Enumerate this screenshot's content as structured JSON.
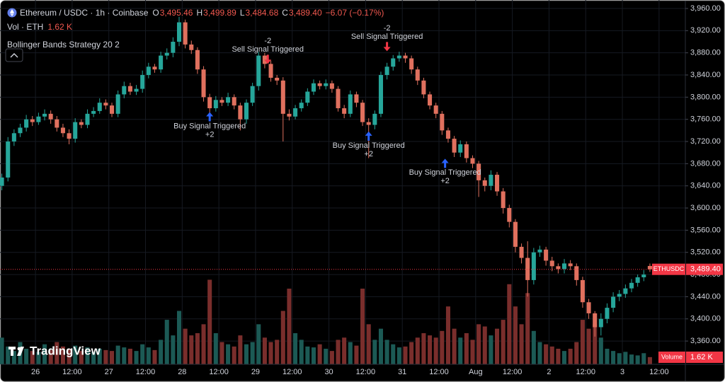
{
  "chart_data": {
    "type": "candlestick",
    "title": "Ethereum / USDC · 1h · Coinbase",
    "ohlc_header": [
      {
        "label": "O",
        "value": "3,495.46"
      },
      {
        "label": "H",
        "value": "3,499.89"
      },
      {
        "label": "L",
        "value": "3,484.68"
      },
      {
        "label": "C",
        "value": "3,489.40"
      }
    ],
    "change": "−6.07 (−0.17%)",
    "volume_legend": {
      "label": "Vol · ETH",
      "value": "1.62 K"
    },
    "indicator": "Bollinger Bands Strategy 20 2",
    "brand": "TradingView",
    "xlim": [
      -11.6,
      212.6
    ],
    "xticks": [
      {
        "value": 0,
        "label": "26"
      },
      {
        "value": 12,
        "label": "12:00"
      },
      {
        "value": 24,
        "label": "27"
      },
      {
        "value": 36,
        "label": "12:00"
      },
      {
        "value": 48,
        "label": "28"
      },
      {
        "value": 60,
        "label": "12:00"
      },
      {
        "value": 72,
        "label": "29"
      },
      {
        "value": 84,
        "label": "12:00"
      },
      {
        "value": 96,
        "label": "30"
      },
      {
        "value": 108,
        "label": "12:00"
      },
      {
        "value": 120,
        "label": "31"
      },
      {
        "value": 132,
        "label": "12:00"
      },
      {
        "value": 144,
        "label": "Aug"
      },
      {
        "value": 156,
        "label": "12:00"
      },
      {
        "value": 168,
        "label": "2"
      },
      {
        "value": 180,
        "label": "12:00"
      },
      {
        "value": 192,
        "label": "3"
      },
      {
        "value": 204,
        "label": "12:00"
      }
    ],
    "ylim": [
      3318,
      3975.3
    ],
    "yticks": [
      {
        "value": 3960,
        "label": "3,960.00"
      },
      {
        "value": 3920,
        "label": "3,920.00"
      },
      {
        "value": 3880,
        "label": "3,880.00"
      },
      {
        "value": 3840,
        "label": "3,840.00"
      },
      {
        "value": 3800,
        "label": "3,800.00"
      },
      {
        "value": 3760,
        "label": "3,760.00"
      },
      {
        "value": 3720,
        "label": "3,720.00"
      },
      {
        "value": 3680,
        "label": "3,680.00"
      },
      {
        "value": 3640,
        "label": "3,640.00"
      },
      {
        "value": 3600,
        "label": "3,600.00"
      },
      {
        "value": 3560,
        "label": "3,560.00"
      },
      {
        "value": 3520,
        "label": "3,520.00"
      },
      {
        "value": 3480,
        "label": "3,480.00"
      },
      {
        "value": 3440,
        "label": "3,440.00"
      },
      {
        "value": 3400,
        "label": "3,400.00"
      },
      {
        "value": 3360,
        "label": "3,360.00"
      }
    ],
    "vlim": [
      0,
      41000
    ],
    "grid": true,
    "up_color": "#26a69a",
    "down_color": "#e0705e",
    "volume_up_color": "#1c5a55",
    "volume_down_color": "#7a2e2c",
    "x": [
      -11,
      -9,
      -7,
      -5,
      -3,
      -1,
      1,
      3,
      5,
      7,
      9,
      11,
      13,
      15,
      17,
      19,
      21,
      23,
      25,
      27,
      29,
      31,
      33,
      35,
      37,
      39,
      41,
      43,
      45,
      47,
      49,
      51,
      53,
      55,
      57,
      59,
      61,
      63,
      65,
      67,
      69,
      71,
      73,
      75,
      77,
      79,
      81,
      83,
      85,
      87,
      89,
      91,
      93,
      95,
      97,
      99,
      101,
      103,
      105,
      107,
      109,
      111,
      113,
      115,
      117,
      119,
      121,
      123,
      125,
      127,
      129,
      131,
      133,
      135,
      137,
      139,
      141,
      143,
      145,
      147,
      149,
      151,
      153,
      155,
      157,
      159,
      161,
      163,
      165,
      167,
      169,
      171,
      173,
      175,
      177,
      179,
      181,
      183,
      185,
      187,
      189,
      191,
      193,
      195,
      197,
      199,
      201
    ],
    "open": [
      3640,
      3655,
      3720,
      3735,
      3745,
      3760,
      3755,
      3765,
      3770,
      3760,
      3745,
      3735,
      3725,
      3755,
      3750,
      3770,
      3775,
      3790,
      3785,
      3770,
      3805,
      3820,
      3810,
      3815,
      3840,
      3855,
      3850,
      3875,
      3880,
      3900,
      3935,
      3895,
      3885,
      3850,
      3800,
      3780,
      3795,
      3790,
      3800,
      3785,
      3760,
      3790,
      3820,
      3875,
      3860,
      3835,
      3830,
      3770,
      3765,
      3780,
      3790,
      3810,
      3825,
      3820,
      3825,
      3815,
      3780,
      3770,
      3805,
      3790,
      3755,
      3750,
      3770,
      3840,
      3855,
      3870,
      3875,
      3870,
      3850,
      3830,
      3805,
      3785,
      3770,
      3740,
      3725,
      3700,
      3715,
      3690,
      3680,
      3650,
      3640,
      3660,
      3630,
      3600,
      3575,
      3530,
      3510,
      3470,
      3520,
      3525,
      3505,
      3495,
      3490,
      3500,
      3495,
      3470,
      3430,
      3410,
      3385,
      3400,
      3420,
      3440,
      3445,
      3455,
      3465,
      3475,
      3495.46
    ],
    "high": [
      3662,
      3728,
      3742,
      3752,
      3768,
      3766,
      3772,
      3778,
      3776,
      3766,
      3752,
      3742,
      3762,
      3760,
      3778,
      3782,
      3798,
      3796,
      3790,
      3812,
      3828,
      3826,
      3822,
      3848,
      3862,
      3860,
      3882,
      3888,
      3908,
      3945,
      3940,
      3902,
      3890,
      3856,
      3806,
      3802,
      3800,
      3808,
      3805,
      3790,
      3796,
      3826,
      3882,
      3880,
      3866,
      3840,
      3836,
      3778,
      3786,
      3796,
      3816,
      3832,
      3830,
      3832,
      3830,
      3820,
      3786,
      3812,
      3810,
      3795,
      3762,
      3776,
      3846,
      3862,
      3876,
      3882,
      3880,
      3875,
      3855,
      3835,
      3810,
      3790,
      3775,
      3745,
      3730,
      3722,
      3720,
      3695,
      3685,
      3655,
      3668,
      3665,
      3636,
      3606,
      3580,
      3536,
      3540,
      3528,
      3532,
      3530,
      3512,
      3500,
      3508,
      3506,
      3500,
      3476,
      3436,
      3414,
      3410,
      3428,
      3448,
      3452,
      3462,
      3472,
      3480,
      3488,
      3499.89
    ],
    "low": [
      3632,
      3648,
      3712,
      3728,
      3738,
      3748,
      3750,
      3758,
      3752,
      3738,
      3728,
      3715,
      3718,
      3744,
      3744,
      3764,
      3770,
      3778,
      3764,
      3764,
      3798,
      3804,
      3804,
      3808,
      3834,
      3844,
      3844,
      3868,
      3872,
      3892,
      3888,
      3878,
      3842,
      3792,
      3772,
      3774,
      3784,
      3784,
      3778,
      3740,
      3752,
      3784,
      3812,
      3852,
      3828,
      3822,
      3720,
      3758,
      3760,
      3774,
      3784,
      3804,
      3814,
      3814,
      3808,
      3774,
      3762,
      3764,
      3782,
      3748,
      3690,
      3742,
      3764,
      3832,
      3848,
      3864,
      3862,
      3842,
      3822,
      3798,
      3778,
      3762,
      3732,
      3718,
      3692,
      3692,
      3682,
      3672,
      3620,
      3630,
      3632,
      3622,
      3590,
      3565,
      3520,
      3500,
      3440,
      3462,
      3512,
      3496,
      3486,
      3482,
      3482,
      3488,
      3460,
      3420,
      3400,
      3368,
      3370,
      3392,
      3412,
      3432,
      3438,
      3448,
      3458,
      3468,
      3484.68
    ],
    "close": [
      3655,
      3720,
      3735,
      3745,
      3760,
      3755,
      3765,
      3770,
      3760,
      3745,
      3735,
      3725,
      3755,
      3750,
      3770,
      3775,
      3790,
      3785,
      3770,
      3805,
      3820,
      3810,
      3815,
      3840,
      3855,
      3850,
      3875,
      3880,
      3900,
      3935,
      3895,
      3885,
      3850,
      3800,
      3780,
      3795,
      3790,
      3800,
      3785,
      3760,
      3790,
      3820,
      3875,
      3860,
      3835,
      3830,
      3770,
      3765,
      3780,
      3790,
      3810,
      3825,
      3820,
      3825,
      3815,
      3780,
      3770,
      3805,
      3790,
      3755,
      3750,
      3770,
      3840,
      3855,
      3870,
      3875,
      3870,
      3850,
      3830,
      3805,
      3785,
      3770,
      3740,
      3725,
      3700,
      3715,
      3690,
      3680,
      3650,
      3640,
      3660,
      3630,
      3600,
      3575,
      3530,
      3510,
      3470,
      3520,
      3525,
      3505,
      3495,
      3490,
      3500,
      3495,
      3470,
      3430,
      3410,
      3385,
      3400,
      3420,
      3440,
      3445,
      3455,
      3465,
      3475,
      3480,
      3489.4
    ],
    "volume": [
      6000,
      4000,
      3000,
      5000,
      3500,
      3000,
      2800,
      4500,
      3200,
      5000,
      4000,
      3500,
      4200,
      3000,
      3800,
      2800,
      3500,
      3200,
      3000,
      4200,
      3800,
      3500,
      3000,
      4500,
      3800,
      3200,
      5500,
      10000,
      6500,
      12000,
      8000,
      6500,
      7000,
      9000,
      19000,
      7000,
      5000,
      4500,
      4000,
      6500,
      4500,
      5000,
      9000,
      6000,
      5000,
      5500,
      12000,
      17000,
      7000,
      5500,
      4000,
      3800,
      4500,
      3500,
      3000,
      5500,
      6000,
      5000,
      4200,
      17000,
      9000,
      5500,
      8000,
      5500,
      4500,
      3800,
      4000,
      5000,
      6000,
      7000,
      6500,
      6000,
      7500,
      13000,
      8000,
      6000,
      7000,
      5500,
      9000,
      8500,
      6500,
      8000,
      10000,
      18000,
      13000,
      9000,
      16000,
      7500,
      5000,
      4500,
      4000,
      3500,
      3000,
      3500,
      5000,
      10000,
      8000,
      9000,
      6000,
      3500,
      3000,
      2500,
      2800,
      2200,
      2000,
      2500,
      1620
    ],
    "last_price": {
      "symbol": "ETHUSDC",
      "label": "3,489.40",
      "value": 3489.4
    },
    "volume_tag": {
      "label": "Volume",
      "value": "1.62 K"
    },
    "signals": [
      {
        "label": "Buy Signal Triggered",
        "qty": "+2",
        "x": 57,
        "price": 3773,
        "position": "below",
        "color": "#2962ff"
      },
      {
        "label": "Sell Signal Triggered",
        "qty": "-2",
        "x": 76,
        "price": 3860,
        "position": "above",
        "color": "#f23645"
      },
      {
        "label": "Buy Signal Triggered",
        "qty": "+2",
        "x": 109,
        "price": 3738,
        "position": "below",
        "color": "#2962ff"
      },
      {
        "label": "Sell Signal Triggered",
        "qty": "-2",
        "x": 115,
        "price": 3883,
        "position": "above",
        "color": "#f23645"
      },
      {
        "label": "Buy Signal Triggered",
        "qty": "+2",
        "x": 134,
        "price": 3689,
        "position": "below",
        "color": "#2962ff"
      }
    ]
  }
}
